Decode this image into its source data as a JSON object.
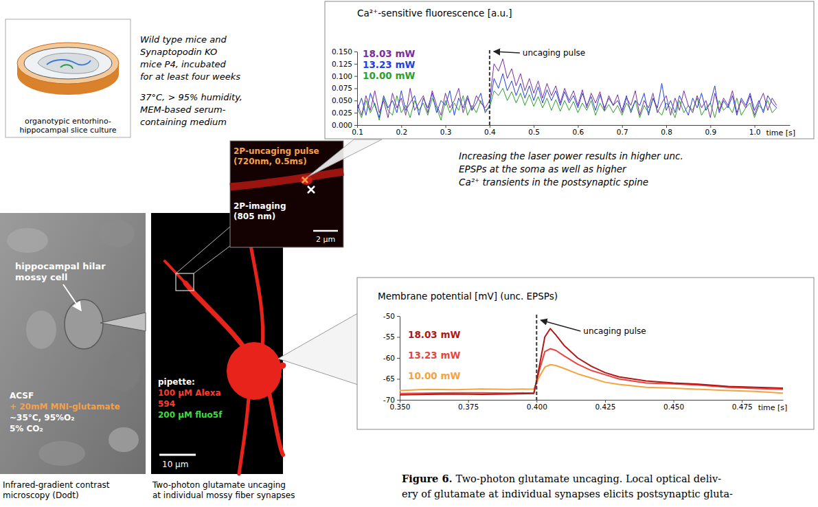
{
  "chart_data": [
    {
      "type": "line",
      "title": "Ca²⁺-sensitive fluorescence [a.u.]",
      "x_label": "time [s]",
      "x": [
        0.1,
        0.11,
        0.12,
        0.13,
        0.14,
        0.15,
        0.16,
        0.17,
        0.18,
        0.19,
        0.2,
        0.21,
        0.22,
        0.23,
        0.24,
        0.25,
        0.26,
        0.27,
        0.28,
        0.29,
        0.3,
        0.31,
        0.32,
        0.33,
        0.34,
        0.35,
        0.36,
        0.37,
        0.38,
        0.39,
        0.4,
        0.41,
        0.42,
        0.43,
        0.44,
        0.45,
        0.46,
        0.47,
        0.48,
        0.49,
        0.5,
        0.51,
        0.52,
        0.53,
        0.54,
        0.55,
        0.56,
        0.57,
        0.58,
        0.59,
        0.6,
        0.61,
        0.62,
        0.63,
        0.64,
        0.65,
        0.66,
        0.67,
        0.68,
        0.69,
        0.7,
        0.71,
        0.72,
        0.73,
        0.74,
        0.75,
        0.76,
        0.77,
        0.78,
        0.79,
        0.8,
        0.81,
        0.82,
        0.83,
        0.84,
        0.85,
        0.86,
        0.87,
        0.88,
        0.89,
        0.9,
        0.91,
        0.92,
        0.93,
        0.94,
        0.95,
        0.96,
        0.97,
        0.98,
        0.99,
        1.0,
        1.01,
        1.02,
        1.03,
        1.04,
        1.05
      ],
      "xlim": [
        0.1,
        1.08
      ],
      "xticks": [
        0.1,
        0.2,
        0.3,
        0.4,
        0.5,
        0.6,
        0.7,
        0.8,
        0.9,
        {
          "value": 1,
          "label": "1.0"
        }
      ],
      "ylim": [
        0,
        0.15
      ],
      "yticks": [
        {
          "value": 0,
          "label": "0.000"
        },
        {
          "value": 0.025,
          "label": "0.025"
        },
        {
          "value": 0.05,
          "label": "0.050"
        },
        {
          "value": 0.075,
          "label": "0.075"
        },
        {
          "value": 0.1,
          "label": "0.100"
        },
        {
          "value": 0.125,
          "label": "0.125"
        },
        {
          "value": 0.15,
          "label": "0.150"
        }
      ],
      "grid": false,
      "legend": "upper left",
      "series": [
        {
          "name": "18.03 mW",
          "color": "#7b2d9c",
          "values": [
            0.045,
            0.02,
            0.06,
            0.03,
            0.07,
            0.025,
            0.05,
            0.015,
            0.065,
            0.035,
            0.055,
            0.02,
            0.075,
            0.03,
            0.045,
            0.06,
            0.025,
            0.07,
            0.04,
            0.02,
            0.065,
            0.035,
            0.05,
            0.075,
            0.025,
            0.055,
            0.03,
            0.06,
            0.045,
            0.035,
            0.05,
            0.125,
            0.11,
            0.135,
            0.095,
            0.115,
            0.08,
            0.105,
            0.07,
            0.095,
            0.065,
            0.09,
            0.055,
            0.085,
            0.06,
            0.08,
            0.045,
            0.075,
            0.05,
            0.07,
            0.04,
            0.072,
            0.035,
            0.065,
            0.045,
            0.068,
            0.03,
            0.06,
            0.04,
            0.062,
            0.025,
            0.055,
            0.04,
            0.07,
            0.02,
            0.05,
            0.035,
            0.065,
            0.025,
            0.045,
            0.06,
            0.02,
            0.055,
            0.03,
            0.07,
            0.04,
            0.025,
            0.06,
            0.035,
            0.05,
            0.015,
            0.065,
            0.03,
            0.055,
            0.04,
            0.07,
            0.025,
            0.05,
            0.035,
            0.06,
            0.02,
            0.045,
            0.065,
            0.03,
            0.055,
            0.04
          ]
        },
        {
          "name": "13.23 mW",
          "color": "#1f3fe0",
          "values": [
            0.03,
            0.055,
            0.02,
            0.065,
            0.04,
            0.015,
            0.06,
            0.035,
            0.05,
            0.025,
            0.07,
            0.03,
            0.045,
            0.06,
            0.02,
            0.055,
            0.035,
            0.065,
            0.025,
            0.05,
            0.04,
            0.07,
            0.02,
            0.055,
            0.035,
            0.06,
            0.03,
            0.045,
            0.065,
            0.025,
            0.04,
            0.095,
            0.075,
            0.105,
            0.07,
            0.09,
            0.06,
            0.085,
            0.055,
            0.08,
            0.05,
            0.078,
            0.045,
            0.072,
            0.05,
            0.07,
            0.04,
            0.068,
            0.045,
            0.06,
            0.035,
            0.065,
            0.04,
            0.058,
            0.03,
            0.062,
            0.035,
            0.055,
            0.04,
            0.05,
            0.03,
            0.06,
            0.025,
            0.05,
            0.04,
            0.065,
            0.02,
            0.055,
            0.035,
            0.085,
            0.03,
            0.05,
            0.025,
            0.06,
            0.04,
            0.02,
            0.055,
            0.035,
            0.065,
            0.03,
            0.045,
            0.08,
            0.025,
            0.05,
            0.035,
            0.06,
            0.02,
            0.055,
            0.04,
            0.065,
            0.03,
            0.05,
            0.025,
            0.06,
            0.045,
            0.035
          ]
        },
        {
          "name": "10.00 mW",
          "color": "#2e9e2e",
          "values": [
            0.035,
            0.015,
            0.05,
            0.025,
            0.045,
            0.01,
            0.055,
            0.03,
            0.02,
            0.06,
            0.025,
            0.04,
            0.015,
            0.05,
            0.03,
            0.045,
            0.02,
            0.055,
            0.035,
            0.01,
            0.05,
            0.025,
            0.045,
            0.03,
            0.06,
            0.02,
            0.04,
            0.025,
            0.05,
            0.03,
            0.035,
            0.07,
            0.06,
            0.075,
            0.05,
            0.068,
            0.045,
            0.065,
            0.04,
            0.062,
            0.038,
            0.058,
            0.035,
            0.055,
            0.03,
            0.052,
            0.028,
            0.05,
            0.03,
            0.048,
            0.025,
            0.045,
            0.03,
            0.05,
            0.02,
            0.045,
            0.028,
            0.042,
            0.025,
            0.04,
            0.02,
            0.045,
            0.03,
            0.05,
            0.015,
            0.04,
            0.025,
            0.055,
            0.03,
            0.02,
            0.045,
            0.035,
            0.015,
            0.05,
            0.025,
            0.04,
            0.03,
            0.055,
            0.02,
            0.035,
            0.045,
            0.015,
            0.05,
            0.03,
            0.04,
            0.025,
            0.055,
            0.02,
            0.035,
            0.045,
            0.015,
            0.04,
            0.03,
            0.05,
            0.025,
            0.035
          ]
        }
      ],
      "annotations": [
        {
          "text": "uncaging pulse",
          "x": 0.4
        }
      ]
    },
    {
      "type": "line",
      "title": "Membrane potential [mV] (unc. EPSPs)",
      "x_label": "time [s]",
      "x": [
        0.35,
        0.36,
        0.37,
        0.38,
        0.39,
        0.399,
        0.401,
        0.403,
        0.405,
        0.407,
        0.41,
        0.415,
        0.42,
        0.425,
        0.43,
        0.44,
        0.45,
        0.46,
        0.47,
        0.48,
        0.49
      ],
      "xlim": [
        0.35,
        0.49
      ],
      "xticks": [
        {
          "value": 0.35,
          "label": "0.350"
        },
        {
          "value": 0.375,
          "label": "0.375"
        },
        {
          "value": 0.4,
          "label": "0.400"
        },
        {
          "value": 0.425,
          "label": "0.425"
        },
        {
          "value": 0.45,
          "label": "0.450"
        },
        {
          "value": 0.475,
          "label": "0.475"
        }
      ],
      "ylim": [
        -70,
        -50
      ],
      "yticks": [
        -70,
        -65,
        -60,
        -55,
        -50
      ],
      "grid": false,
      "legend": "upper left",
      "series": [
        {
          "name": "18.03 mW",
          "color": "#b01818",
          "values": [
            -68.8,
            -68.7,
            -68.6,
            -68.7,
            -68.6,
            -68.5,
            -62,
            -55,
            -53,
            -54.5,
            -57,
            -60,
            -62,
            -63.5,
            -64.5,
            -65.5,
            -66,
            -66.3,
            -66.8,
            -67,
            -67.2
          ]
        },
        {
          "name": "13.23 mW",
          "color": "#e8453c",
          "values": [
            -68.5,
            -68.4,
            -68.3,
            -68.3,
            -68.4,
            -68.3,
            -63,
            -58.5,
            -57.8,
            -58.2,
            -59.5,
            -61.5,
            -63,
            -64,
            -65,
            -66,
            -66.2,
            -66.5,
            -67,
            -67.3,
            -67.5
          ]
        },
        {
          "name": "10.00 mW",
          "color": "#f5a340",
          "values": [
            -67.8,
            -67.5,
            -67.6,
            -67.4,
            -67.5,
            -67.4,
            -64.5,
            -62.2,
            -61.6,
            -61.8,
            -62.5,
            -63.8,
            -64.8,
            -65.8,
            -66.3,
            -67,
            -67.2,
            -67.5,
            -67.8,
            -68,
            -68.4
          ]
        }
      ],
      "annotations": [
        {
          "text": "uncaging pulse",
          "x": 0.4
        }
      ]
    }
  ],
  "slice_culture": {
    "label": [
      "organotypic entorhino-",
      "hippocampal slice culture"
    ],
    "notes": [
      [
        "Wild type mice and",
        "Synaptopodin KO",
        "mice P4, incubated",
        "for at least four weeks"
      ],
      [
        "37°C, > 95% humidity,",
        "MEM-based serum-",
        "containing medium"
      ]
    ]
  },
  "ir_image": {
    "cell_label": [
      "hippocampal hilar",
      "mossy cell"
    ],
    "bath": [
      "ACSF",
      "+ 20mM MNI-glutamate",
      "~35°C, 95%O₂",
      "5% CO₂"
    ],
    "caption": [
      "Infrared-gradient contrast",
      "microscopy (Dodt)"
    ]
  },
  "two_photon_image": {
    "pipette": [
      "pipette:",
      "100 µM Alexa",
      "594",
      "200 µM fluo5f"
    ],
    "scale_bar": "10 µm",
    "caption": [
      "Two-photon glutamate uncaging",
      "at individual mossy fiber synapses"
    ]
  },
  "inset": {
    "uncaging": [
      "2P-uncaging pulse",
      "(720nm, 0.5ms)"
    ],
    "imaging": [
      "2P-imaging",
      "(805 nm)"
    ],
    "scale_bar": "2 µm"
  },
  "result_text": [
    "Increasing the laser power results in higher unc.",
    "EPSPs at the soma as well as higher",
    "Ca²⁺ transients in the postsynaptic spine"
  ],
  "caption": {
    "label": "Figure 6.",
    "lines": [
      "Two-photon glutamate uncaging. Local optical deliv-",
      "ery of glutamate at individual synapses elicits postsynaptic gluta-"
    ]
  }
}
